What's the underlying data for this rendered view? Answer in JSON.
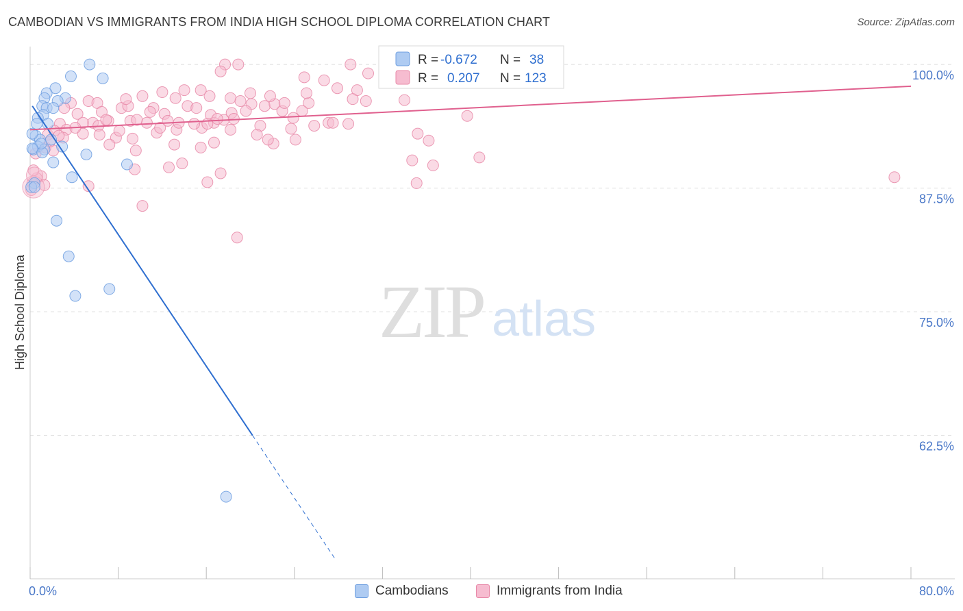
{
  "title": "CAMBODIAN VS IMMIGRANTS FROM INDIA HIGH SCHOOL DIPLOMA CORRELATION CHART",
  "source": "Source: ZipAtlas.com",
  "watermark": {
    "zip": "ZIP",
    "atlas": "atlas"
  },
  "colors": {
    "blue": "#6f9fe0",
    "blue_fill": "#aecbf2",
    "blue_line": "#2f6fd0",
    "pink": "#e889a8",
    "pink_fill": "#f6bcd0",
    "pink_line": "#e0608e",
    "tick_text": "#4a78c8",
    "grid": "#dcdcdc"
  },
  "chart_data": {
    "type": "scatter",
    "title": "CAMBODIAN VS IMMIGRANTS FROM INDIA HIGH SCHOOL DIPLOMA CORRELATION CHART",
    "xlabel": "",
    "ylabel": "High School Diploma",
    "xlim": [
      0,
      80
    ],
    "ylim": [
      48,
      102.5
    ],
    "x_tick_labels": [
      "0.0%",
      "80.0%"
    ],
    "y_ticks": [
      62.5,
      75.0,
      87.5,
      100.0
    ],
    "y_tick_labels": [
      "62.5%",
      "75.0%",
      "87.5%",
      "100.0%"
    ],
    "grid": true,
    "legend": [
      {
        "name": "Cambodians",
        "r_label": "R =",
        "r": "-0.672",
        "n_label": "N =",
        "n": "38"
      },
      {
        "name": "Immigrants from India",
        "r_label": "R =",
        "r": "0.207",
        "n_label": "N =",
        "n": "123"
      }
    ],
    "series": [
      {
        "name": "Cambodians",
        "trend": {
          "x0": 0.2,
          "y0": 95.8,
          "x1": 20.2,
          "y1": 62.5,
          "dash_x1": 27.8
        },
        "points": [
          [
            5.4,
            100
          ],
          [
            3.7,
            98.8
          ],
          [
            6.6,
            98.6
          ],
          [
            2.3,
            97.6
          ],
          [
            1.5,
            97.1
          ],
          [
            1.3,
            96.6
          ],
          [
            3.2,
            96.6
          ],
          [
            2.5,
            96.3
          ],
          [
            1.1,
            95.8
          ],
          [
            1.5,
            95.6
          ],
          [
            2.1,
            95.6
          ],
          [
            1.2,
            94.9
          ],
          [
            0.7,
            94.6
          ],
          [
            1.6,
            94.0
          ],
          [
            0.6,
            94.0
          ],
          [
            0.5,
            92.8
          ],
          [
            0.9,
            92.4
          ],
          [
            1.9,
            92.4
          ],
          [
            0.7,
            91.7
          ],
          [
            2.9,
            91.7
          ],
          [
            0.3,
            91.4
          ],
          [
            1.3,
            91.4
          ],
          [
            1.1,
            91.1
          ],
          [
            5.1,
            90.9
          ],
          [
            2.1,
            90.1
          ],
          [
            8.8,
            89.9
          ],
          [
            3.8,
            88.6
          ],
          [
            0.4,
            88.0
          ],
          [
            0.1,
            87.6
          ],
          [
            2.4,
            84.2
          ],
          [
            3.5,
            80.6
          ],
          [
            4.1,
            76.6
          ],
          [
            7.2,
            77.3
          ],
          [
            17.8,
            56.3
          ],
          [
            0.2,
            93.0
          ],
          [
            1.0,
            92.0
          ],
          [
            0.4,
            87.6
          ],
          [
            0.2,
            91.5
          ]
        ]
      },
      {
        "name": "Immigrants from India",
        "trend": {
          "x0": 0,
          "y0": 93.4,
          "x1": 80,
          "y1": 97.8
        },
        "points": [
          [
            17.7,
            100
          ],
          [
            18.9,
            100
          ],
          [
            29.1,
            100
          ],
          [
            17.3,
            99.3
          ],
          [
            3.7,
            96.1
          ],
          [
            5.3,
            96.3
          ],
          [
            6.1,
            96.1
          ],
          [
            3.1,
            95.6
          ],
          [
            4.3,
            95.0
          ],
          [
            5.7,
            94.1
          ],
          [
            6.5,
            95.2
          ],
          [
            8.3,
            95.6
          ],
          [
            8.9,
            95.8
          ],
          [
            12.2,
            95.0
          ],
          [
            14.3,
            95.8
          ],
          [
            15.1,
            95.6
          ],
          [
            16.4,
            94.9
          ],
          [
            18.2,
            96.6
          ],
          [
            20.1,
            96.0
          ],
          [
            21.3,
            95.8
          ],
          [
            22.2,
            96.0
          ],
          [
            23.9,
            94.6
          ],
          [
            25.3,
            96.1
          ],
          [
            29.7,
            97.4
          ],
          [
            2.7,
            94.0
          ],
          [
            3.3,
            93.4
          ],
          [
            4.8,
            94.1
          ],
          [
            6.2,
            93.8
          ],
          [
            7.1,
            94.3
          ],
          [
            9.1,
            94.3
          ],
          [
            10.6,
            94.1
          ],
          [
            11.5,
            93.1
          ],
          [
            13.3,
            93.4
          ],
          [
            15.6,
            93.6
          ],
          [
            16.7,
            94.1
          ],
          [
            17.6,
            94.4
          ],
          [
            18.3,
            95.1
          ],
          [
            20.9,
            93.8
          ],
          [
            22.9,
            95.3
          ],
          [
            27.1,
            94.1
          ],
          [
            1.6,
            92.9
          ],
          [
            3.0,
            92.6
          ],
          [
            4.8,
            93.0
          ],
          [
            6.3,
            92.9
          ],
          [
            7.8,
            92.6
          ],
          [
            9.3,
            92.5
          ],
          [
            11.8,
            93.6
          ],
          [
            13.5,
            94.1
          ],
          [
            14.9,
            94.0
          ],
          [
            16.7,
            92.1
          ],
          [
            18.2,
            93.4
          ],
          [
            20.6,
            92.9
          ],
          [
            23.7,
            93.5
          ],
          [
            25.8,
            93.8
          ],
          [
            28.9,
            94.0
          ],
          [
            35.2,
            93.0
          ],
          [
            1.4,
            91.6
          ],
          [
            2.1,
            91.3
          ],
          [
            7.2,
            91.9
          ],
          [
            9.6,
            91.3
          ],
          [
            13.1,
            91.9
          ],
          [
            15.5,
            91.6
          ],
          [
            22.1,
            92.0
          ],
          [
            24.1,
            92.4
          ],
          [
            36.2,
            92.3
          ],
          [
            1.0,
            88.7
          ],
          [
            0.6,
            88.5
          ],
          [
            1.3,
            87.8
          ],
          [
            5.3,
            87.7
          ],
          [
            9.5,
            89.4
          ],
          [
            12.6,
            89.6
          ],
          [
            13.8,
            90.0
          ],
          [
            16.1,
            88.1
          ],
          [
            17.3,
            89.0
          ],
          [
            35.1,
            88.0
          ],
          [
            34.7,
            90.3
          ],
          [
            36.6,
            89.8
          ],
          [
            40.8,
            90.6
          ],
          [
            78.5,
            88.6
          ],
          [
            10.2,
            85.7
          ],
          [
            18.8,
            82.5
          ],
          [
            30.7,
            99.1
          ],
          [
            32.6,
            98.4
          ],
          [
            26.7,
            98.4
          ],
          [
            27.9,
            97.6
          ],
          [
            25.1,
            97.1
          ],
          [
            27.5,
            94.1
          ],
          [
            29.3,
            96.5
          ],
          [
            30.5,
            96.3
          ],
          [
            34.0,
            96.4
          ],
          [
            39.7,
            94.8
          ],
          [
            21.8,
            96.8
          ],
          [
            19.1,
            96.3
          ],
          [
            16.3,
            96.8
          ],
          [
            13.2,
            96.6
          ],
          [
            12.0,
            97.2
          ],
          [
            8.7,
            96.5
          ],
          [
            6.9,
            94.4
          ],
          [
            24.9,
            98.7
          ],
          [
            20.0,
            97.1
          ],
          [
            10.2,
            96.8
          ],
          [
            11.2,
            95.6
          ],
          [
            9.7,
            94.4
          ],
          [
            14.0,
            97.4
          ],
          [
            15.5,
            97.4
          ],
          [
            17.0,
            94.5
          ],
          [
            18.5,
            94.5
          ],
          [
            23.1,
            96.1
          ],
          [
            19.6,
            95.3
          ],
          [
            4.1,
            93.6
          ],
          [
            2.2,
            93.3
          ],
          [
            1.8,
            92.2
          ],
          [
            8.1,
            93.3
          ],
          [
            12.5,
            94.3
          ],
          [
            16.1,
            94.0
          ],
          [
            0.3,
            89.3
          ],
          [
            0.2,
            88.0
          ],
          [
            0.1,
            87.3
          ],
          [
            0.5,
            91.0
          ],
          [
            21.6,
            92.4
          ],
          [
            10.9,
            95.2
          ],
          [
            24.7,
            95.3
          ],
          [
            2.6,
            92.8
          ]
        ]
      }
    ]
  }
}
